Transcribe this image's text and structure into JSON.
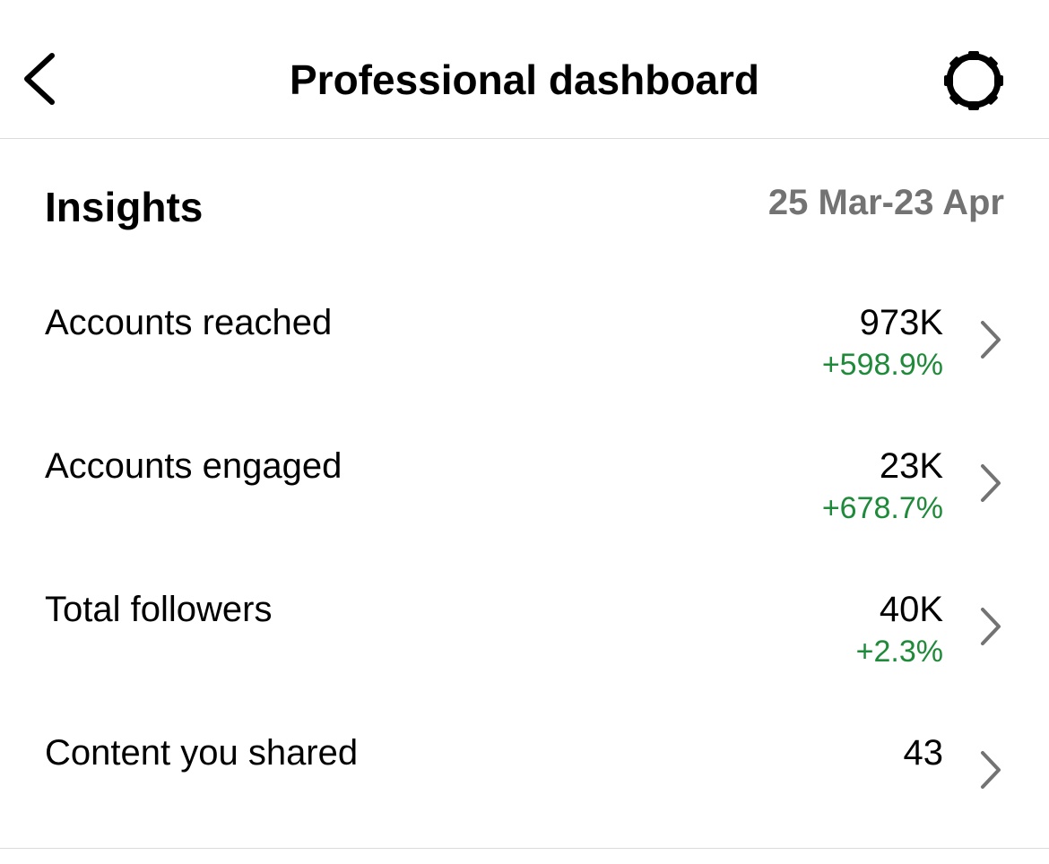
{
  "header": {
    "title": "Professional dashboard"
  },
  "insights": {
    "title": "Insights",
    "date_range": "25 Mar-23 Apr",
    "rows": [
      {
        "label": "Accounts reached",
        "value": "973K",
        "change": "+598.9%"
      },
      {
        "label": "Accounts engaged",
        "value": "23K",
        "change": "+678.7%"
      },
      {
        "label": "Total followers",
        "value": "40K",
        "change": "+2.3%"
      },
      {
        "label": "Content you shared",
        "value": "43"
      }
    ]
  }
}
